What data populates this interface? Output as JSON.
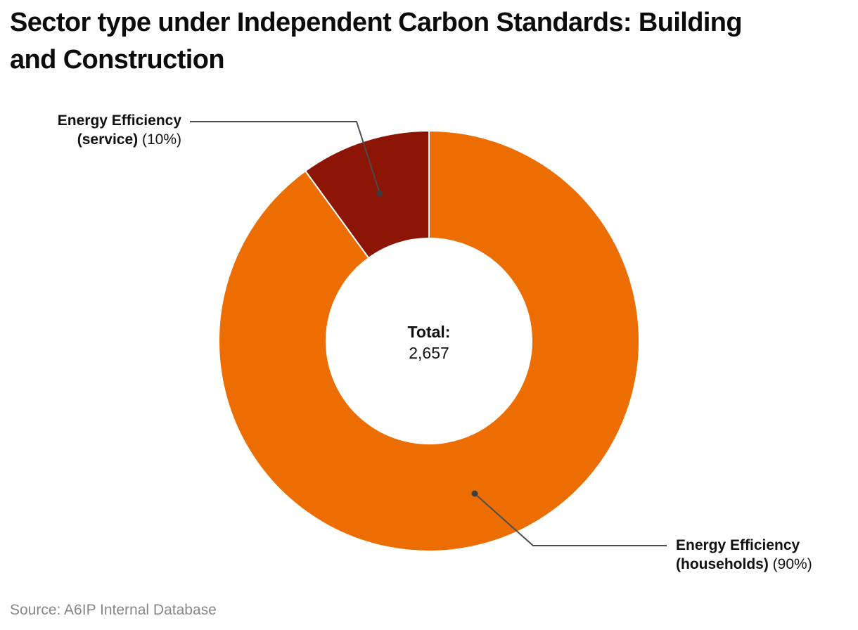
{
  "page": {
    "title_line1": "Sector type under Independent Carbon Standards: Building",
    "title_line2": "and Construction",
    "source": "Source: A6IP Internal Database"
  },
  "center": {
    "label": "Total:",
    "value": "2,657"
  },
  "callouts": {
    "service": {
      "name_line1": "Energy Efficiency",
      "name_line2": "(service)",
      "percent": "(10%)"
    },
    "households": {
      "name_line1": "Energy Efficiency",
      "name_line2": "(households)",
      "percent": "(90%)"
    }
  },
  "colors": {
    "households_slice": "#EC6D02",
    "service_slice": "#8D1505",
    "slice_separator": "#FFFFFF",
    "leader_line": "#4D4D4D",
    "leader_dot": "#3D3D3D",
    "title_text": "#0B0B0B",
    "label_text": "#111111",
    "source_text": "#878787"
  },
  "chart_data": {
    "type": "pie",
    "subtype": "donut",
    "title": "Sector type under Independent Carbon Standards: Building and Construction",
    "center_label": "Total:",
    "center_value": "2,657",
    "start_angle_deg": 0,
    "direction": "clockwise",
    "legend_position": "callouts",
    "slices": [
      {
        "key": "households",
        "label": "Energy Efficiency (households)",
        "percent": 90,
        "color": "#EC6D02"
      },
      {
        "key": "service",
        "label": "Energy Efficiency (service)",
        "percent": 10,
        "color": "#8D1505"
      }
    ],
    "source": "Source: A6IP Internal Database"
  }
}
